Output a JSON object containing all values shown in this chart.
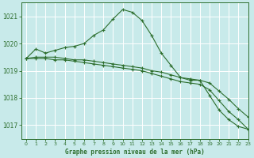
{
  "background_color": "#c8eaea",
  "grid_color": "#ffffff",
  "line_color": "#2d6e2d",
  "title": "Graphe pression niveau de la mer (hPa)",
  "ylim": [
    1016.5,
    1021.5
  ],
  "yticks": [
    1017,
    1018,
    1019,
    1020,
    1021
  ],
  "xlim": [
    -0.5,
    23
  ],
  "xticks": [
    0,
    1,
    2,
    3,
    4,
    5,
    6,
    7,
    8,
    9,
    10,
    11,
    12,
    13,
    14,
    15,
    16,
    17,
    18,
    19,
    20,
    21,
    22,
    23
  ],
  "series": [
    {
      "x": [
        0,
        1,
        2,
        3,
        4,
        5,
        6,
        7,
        8,
        9,
        10,
        11,
        12,
        13,
        14,
        15,
        16,
        17,
        18,
        19,
        20,
        21,
        22,
        23
      ],
      "y": [
        1019.45,
        1019.8,
        1019.65,
        1019.75,
        1019.85,
        1019.9,
        1020.0,
        1020.3,
        1020.5,
        1020.9,
        1021.25,
        1021.15,
        1020.85,
        1020.3,
        1019.65,
        1019.2,
        1018.75,
        1018.65,
        1018.65,
        1018.1,
        1017.55,
        1017.2,
        1016.95,
        1016.85
      ]
    },
    {
      "x": [
        0,
        1,
        2,
        3,
        4,
        5,
        6,
        7,
        8,
        9,
        10,
        11,
        12,
        13,
        14,
        15,
        16,
        17,
        18,
        19,
        20,
        21,
        22,
        23
      ],
      "y": [
        1019.45,
        1019.5,
        1019.5,
        1019.5,
        1019.45,
        1019.4,
        1019.4,
        1019.35,
        1019.3,
        1019.25,
        1019.2,
        1019.15,
        1019.1,
        1019.0,
        1018.95,
        1018.85,
        1018.75,
        1018.7,
        1018.65,
        1018.55,
        1018.25,
        1017.95,
        1017.6,
        1017.3
      ]
    },
    {
      "x": [
        0,
        1,
        2,
        3,
        4,
        5,
        6,
        7,
        8,
        9,
        10,
        11,
        12,
        13,
        14,
        15,
        16,
        17,
        18,
        19,
        20,
        21,
        22,
        23
      ],
      "y": [
        1019.45,
        1019.45,
        1019.45,
        1019.4,
        1019.4,
        1019.35,
        1019.3,
        1019.25,
        1019.2,
        1019.15,
        1019.1,
        1019.05,
        1019.0,
        1018.9,
        1018.8,
        1018.7,
        1018.6,
        1018.55,
        1018.5,
        1018.3,
        1017.9,
        1017.5,
        1017.2,
        1016.85
      ]
    }
  ]
}
